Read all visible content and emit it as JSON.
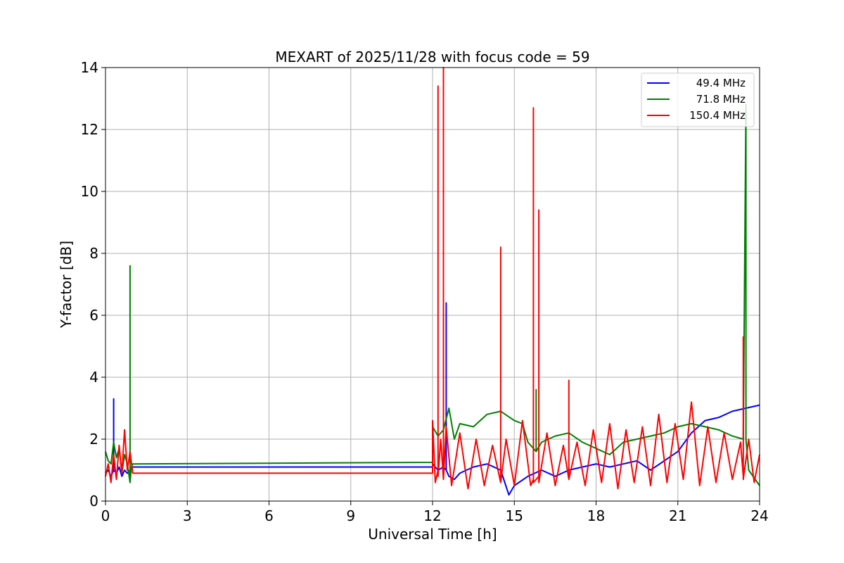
{
  "chart_data": {
    "type": "line",
    "title": "MEXART of 2025/11/28 with focus code = 59",
    "xlabel": "Universal Time [h]",
    "ylabel": "Y-factor [dB]",
    "xlim": [
      0,
      24
    ],
    "ylim": [
      0,
      14
    ],
    "xticks": [
      0,
      3,
      6,
      9,
      12,
      15,
      18,
      21,
      24
    ],
    "yticks": [
      0,
      2,
      4,
      6,
      8,
      10,
      12,
      14
    ],
    "grid": true,
    "legend_position": "top-right",
    "series": [
      {
        "name": "49.4 MHz",
        "color": "#0000ff",
        "x": [
          0,
          0.1,
          0.2,
          0.3,
          0.3,
          0.3,
          0.4,
          0.5,
          0.6,
          0.7,
          0.8,
          0.9,
          0.95,
          1.0,
          12.0,
          12.0,
          12.2,
          12.4,
          12.5,
          12.5,
          12.5,
          12.6,
          12.8,
          13.0,
          13.5,
          14.0,
          14.5,
          14.8,
          15.0,
          15.5,
          16.0,
          16.5,
          17.0,
          17.5,
          18.0,
          18.5,
          19.0,
          19.5,
          20.0,
          20.5,
          21.0,
          21.5,
          22.0,
          22.5,
          23.0,
          23.5,
          24.0
        ],
        "values": [
          0.9,
          1.0,
          0.8,
          1.0,
          3.3,
          1.0,
          0.9,
          1.1,
          0.8,
          1.0,
          0.9,
          1.0,
          1.1,
          1.1,
          1.1,
          1.2,
          1.0,
          1.1,
          1.0,
          6.4,
          1.0,
          0.8,
          0.7,
          0.9,
          1.1,
          1.2,
          1.0,
          0.2,
          0.5,
          0.8,
          1.0,
          0.8,
          1.0,
          1.1,
          1.2,
          1.1,
          1.2,
          1.3,
          1.0,
          1.3,
          1.6,
          2.2,
          2.6,
          2.7,
          2.9,
          3.0,
          3.1
        ]
      },
      {
        "name": "71.8 MHz",
        "color": "#008000",
        "x": [
          0,
          0.1,
          0.2,
          0.3,
          0.4,
          0.5,
          0.6,
          0.7,
          0.8,
          0.9,
          0.9,
          0.9,
          0.95,
          1.0,
          12.0,
          12.0,
          12.2,
          12.4,
          12.6,
          12.8,
          13.0,
          13.5,
          14.0,
          14.5,
          15.0,
          15.3,
          15.5,
          15.8,
          15.8,
          15.8,
          16.0,
          16.5,
          17.0,
          17.5,
          18.0,
          18.5,
          19.0,
          19.5,
          20.0,
          20.5,
          21.0,
          21.5,
          22.0,
          22.5,
          23.0,
          23.4,
          23.5,
          23.5,
          23.6,
          24.0
        ],
        "values": [
          1.6,
          1.3,
          1.2,
          1.9,
          1.4,
          1.7,
          0.9,
          1.5,
          1.2,
          0.6,
          7.6,
          0.6,
          1.1,
          1.2,
          1.25,
          2.4,
          2.1,
          2.3,
          3.0,
          2.0,
          2.5,
          2.4,
          2.8,
          2.9,
          2.6,
          2.5,
          1.9,
          1.6,
          3.6,
          1.6,
          1.9,
          2.1,
          2.2,
          1.9,
          1.7,
          1.5,
          1.9,
          2.0,
          2.1,
          2.2,
          2.4,
          2.5,
          2.4,
          2.3,
          2.1,
          2.0,
          12.8,
          2.0,
          1.0,
          0.5
        ]
      },
      {
        "name": "150.4 MHz",
        "color": "#ff0000",
        "x": [
          0,
          0.1,
          0.2,
          0.3,
          0.4,
          0.5,
          0.6,
          0.7,
          0.8,
          0.9,
          1.0,
          12.0,
          12.0,
          12.1,
          12.2,
          12.2,
          12.2,
          12.3,
          12.4,
          12.4,
          12.4,
          12.5,
          12.7,
          13.0,
          13.3,
          13.6,
          13.9,
          14.2,
          14.5,
          14.5,
          14.5,
          14.7,
          15.0,
          15.3,
          15.6,
          15.7,
          15.7,
          15.7,
          15.9,
          15.9,
          15.9,
          16.2,
          16.5,
          16.8,
          17.0,
          17.0,
          17.0,
          17.3,
          17.6,
          17.9,
          18.2,
          18.5,
          18.8,
          19.1,
          19.4,
          19.7,
          20.0,
          20.3,
          20.6,
          20.9,
          21.2,
          21.5,
          21.8,
          22.1,
          22.4,
          22.7,
          23.0,
          23.3,
          23.4,
          23.4,
          23.4,
          23.6,
          23.8,
          24.0
        ],
        "values": [
          0.8,
          1.2,
          0.6,
          1.5,
          0.7,
          1.8,
          0.9,
          2.3,
          1.0,
          1.6,
          0.9,
          0.9,
          2.6,
          0.6,
          1.0,
          13.4,
          0.8,
          2.0,
          0.7,
          14.0,
          0.7,
          2.4,
          0.5,
          2.2,
          0.4,
          2.0,
          0.5,
          1.8,
          0.6,
          8.2,
          0.6,
          2.0,
          0.5,
          2.6,
          0.5,
          0.7,
          12.7,
          0.6,
          0.8,
          9.4,
          0.6,
          2.2,
          0.5,
          1.8,
          0.7,
          3.9,
          0.7,
          1.9,
          0.5,
          2.3,
          0.6,
          2.5,
          0.4,
          2.3,
          0.6,
          2.4,
          0.5,
          2.8,
          0.6,
          2.5,
          0.7,
          3.2,
          0.5,
          2.4,
          0.6,
          2.2,
          0.7,
          1.9,
          0.8,
          5.3,
          0.7,
          2.0,
          0.6,
          1.5
        ]
      }
    ]
  }
}
